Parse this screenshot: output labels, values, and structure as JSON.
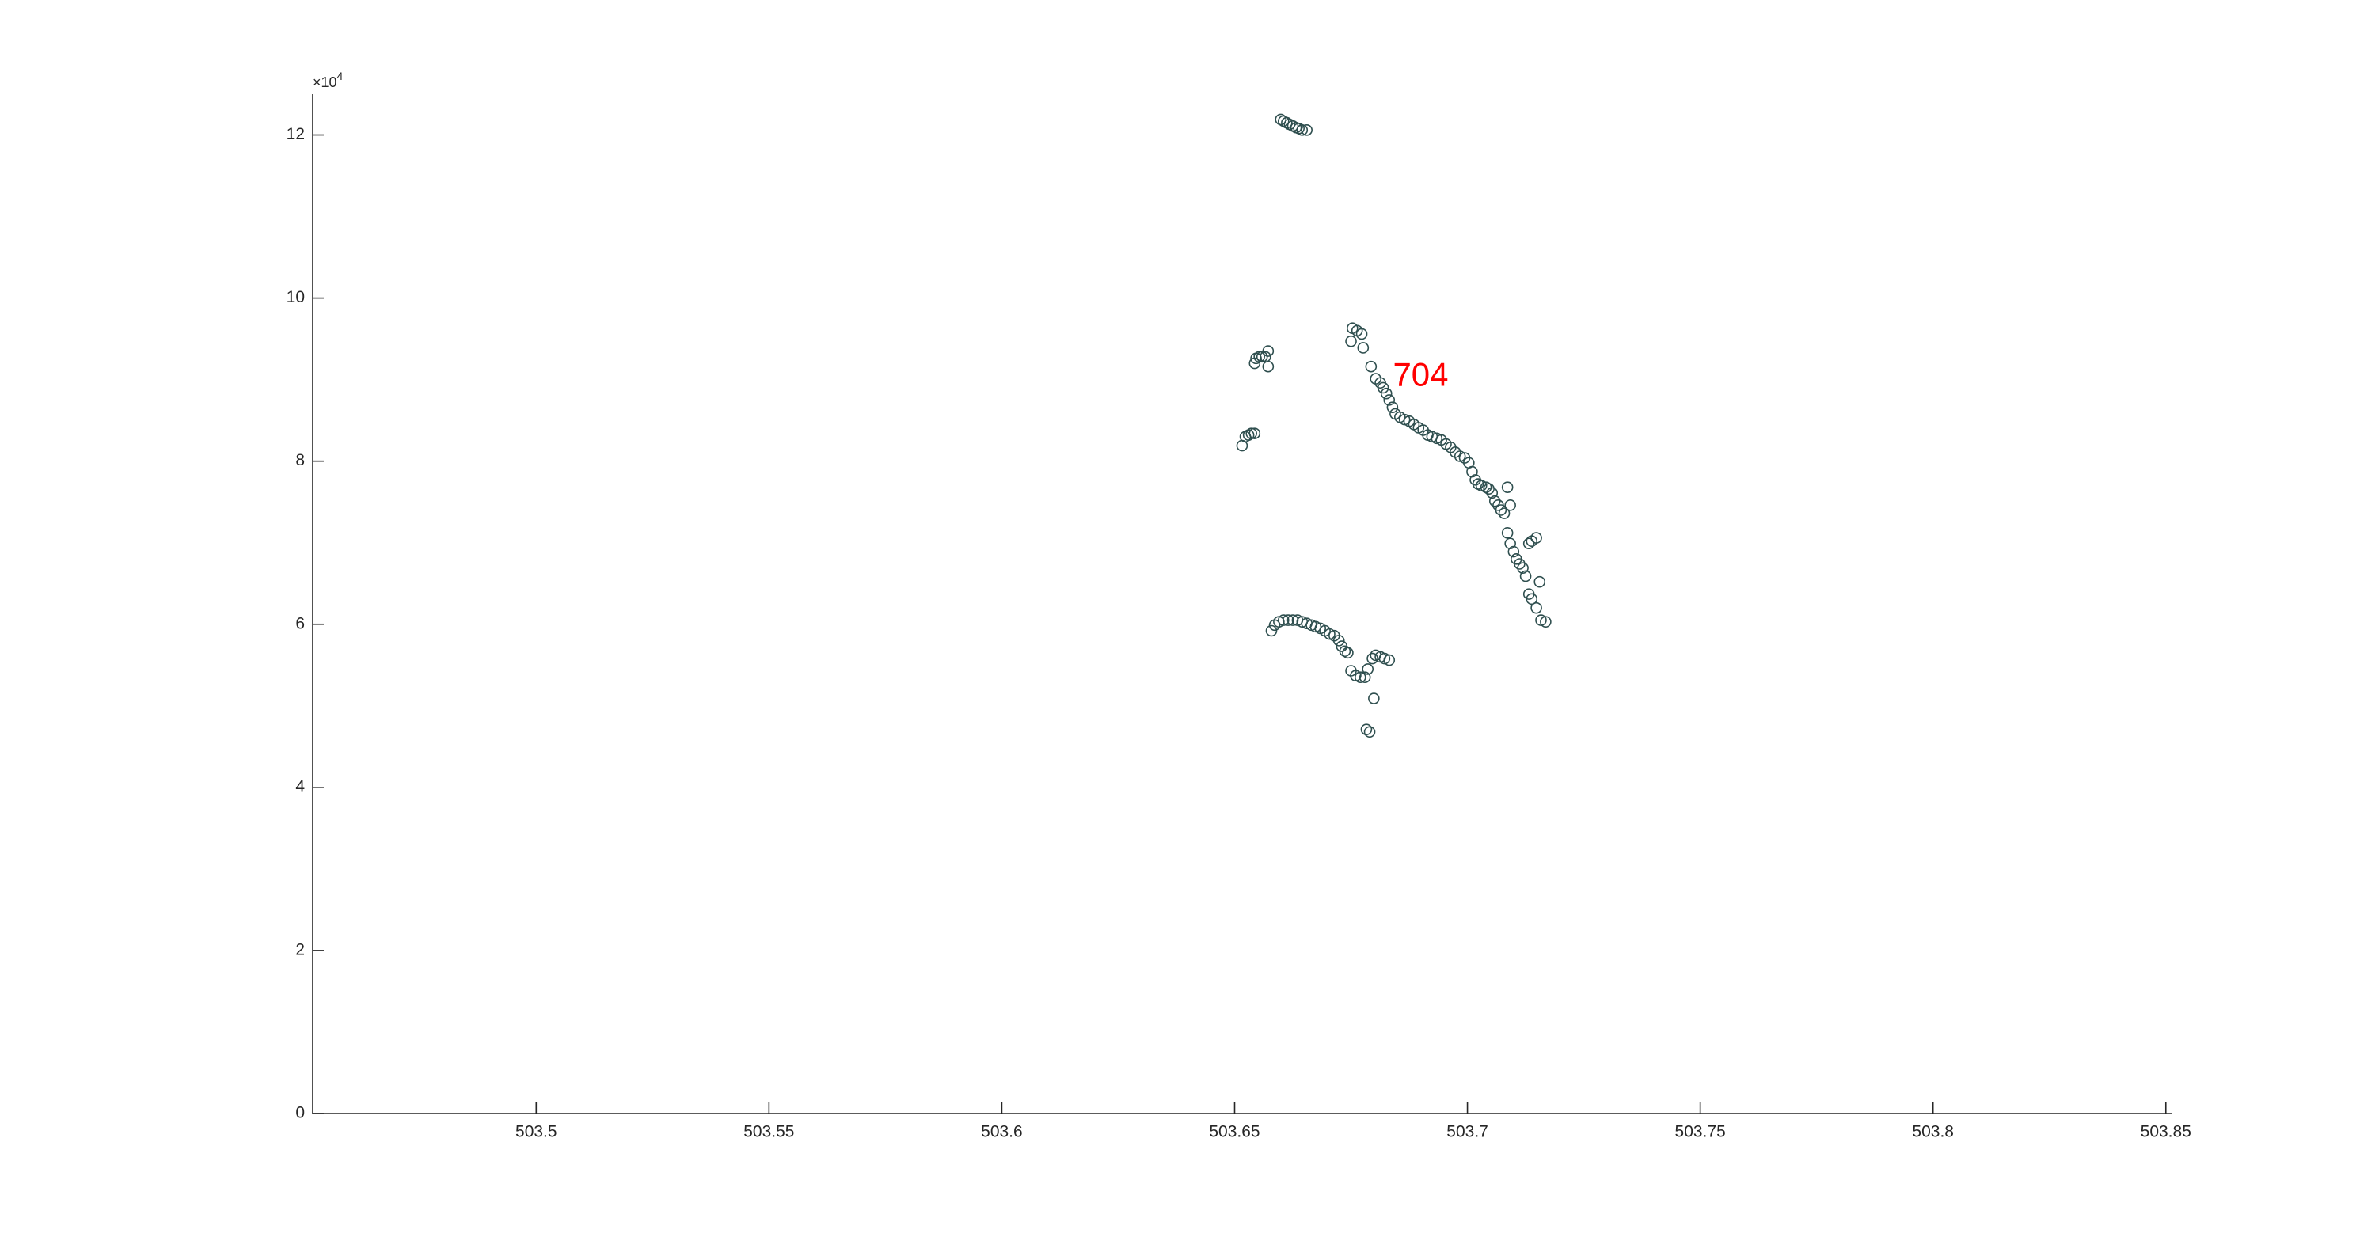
{
  "chart_data": {
    "type": "scatter",
    "color": "#2f4f4f",
    "xlim": [
      503.452,
      503.8514
    ],
    "ylim": [
      0,
      125000
    ],
    "xticks": [
      503.5,
      503.55,
      503.6,
      503.65,
      503.7,
      503.75,
      503.8,
      503.85
    ],
    "yticks": [
      0,
      {
        "value": 20000,
        "label": "2"
      },
      {
        "value": 40000,
        "label": "4"
      },
      {
        "value": 60000,
        "label": "6"
      },
      {
        "value": 80000,
        "label": "8"
      },
      {
        "value": 100000,
        "label": "10"
      },
      {
        "value": 120000,
        "label": "12"
      }
    ],
    "y_exponent": {
      "base": "×10",
      "power": "4"
    },
    "annotations": [
      {
        "text": "704",
        "x": 503.684,
        "y": 90300,
        "color": "#ff0000"
      }
    ],
    "x": [
      503.6599,
      503.6605,
      503.6612,
      503.6618,
      503.6625,
      503.6632,
      503.6638,
      503.6645,
      503.6655,
      503.6543,
      503.6546,
      503.6553,
      503.6559,
      503.6566,
      503.6572,
      503.6572,
      503.6516,
      503.6523,
      503.653,
      503.6536,
      503.6543,
      503.6753,
      503.6763,
      503.6773,
      503.675,
      503.6776,
      503.6793,
      503.6803,
      503.6813,
      503.6819,
      503.6826,
      503.6832,
      503.6839,
      503.6845,
      503.6855,
      503.6865,
      503.6875,
      503.6885,
      503.6895,
      503.6905,
      503.6915,
      503.6924,
      503.6934,
      503.6944,
      503.6954,
      503.6964,
      503.6974,
      503.6984,
      503.6994,
      503.7003,
      503.701,
      503.7017,
      503.7023,
      503.703,
      503.704,
      503.7046,
      503.7053,
      503.7059,
      503.7066,
      503.7072,
      503.7079,
      503.7086,
      503.7092,
      503.7086,
      503.7092,
      503.7099,
      503.7105,
      503.7112,
      503.7119,
      503.7125,
      503.7132,
      503.7138,
      503.7148,
      503.7132,
      503.7138,
      503.7148,
      503.7155,
      503.7158,
      503.7168,
      503.6579,
      503.6586,
      503.6595,
      503.6605,
      503.6615,
      503.6625,
      503.6635,
      503.6645,
      503.6655,
      503.6665,
      503.6674,
      503.6684,
      503.6694,
      503.6704,
      503.6714,
      503.6724,
      503.673,
      503.6737,
      503.6743,
      503.675,
      503.676,
      503.677,
      503.678,
      503.6786,
      503.6796,
      503.6803,
      503.6813,
      503.6822,
      503.6832,
      503.6799,
      503.6783,
      503.679
    ],
    "values": [
      121900,
      121700,
      121500,
      121300,
      121100,
      120900,
      120800,
      120600,
      120600,
      92000,
      92600,
      92800,
      92800,
      92800,
      93500,
      91600,
      81900,
      83000,
      83200,
      83400,
      83400,
      96300,
      96000,
      95600,
      94700,
      93900,
      91600,
      90100,
      89600,
      89000,
      88300,
      87500,
      86600,
      85800,
      85400,
      85100,
      84900,
      84500,
      84100,
      83800,
      83200,
      83000,
      82800,
      82600,
      82100,
      81700,
      81100,
      80600,
      80400,
      79800,
      78700,
      77700,
      77200,
      77000,
      76800,
      76600,
      76100,
      75100,
      74600,
      74000,
      73600,
      76800,
      74600,
      71200,
      69900,
      68900,
      68000,
      67400,
      66900,
      65900,
      69900,
      70200,
      70600,
      63700,
      63100,
      62000,
      65200,
      60500,
      60300,
      59200,
      59900,
      60300,
      60500,
      60500,
      60500,
      60500,
      60300,
      60100,
      59900,
      59700,
      59500,
      59200,
      58800,
      58600,
      58000,
      57300,
      56700,
      56500,
      54300,
      53700,
      53500,
      53500,
      54500,
      55800,
      56200,
      56000,
      55800,
      55600,
      50900,
      47100,
      46800
    ]
  }
}
